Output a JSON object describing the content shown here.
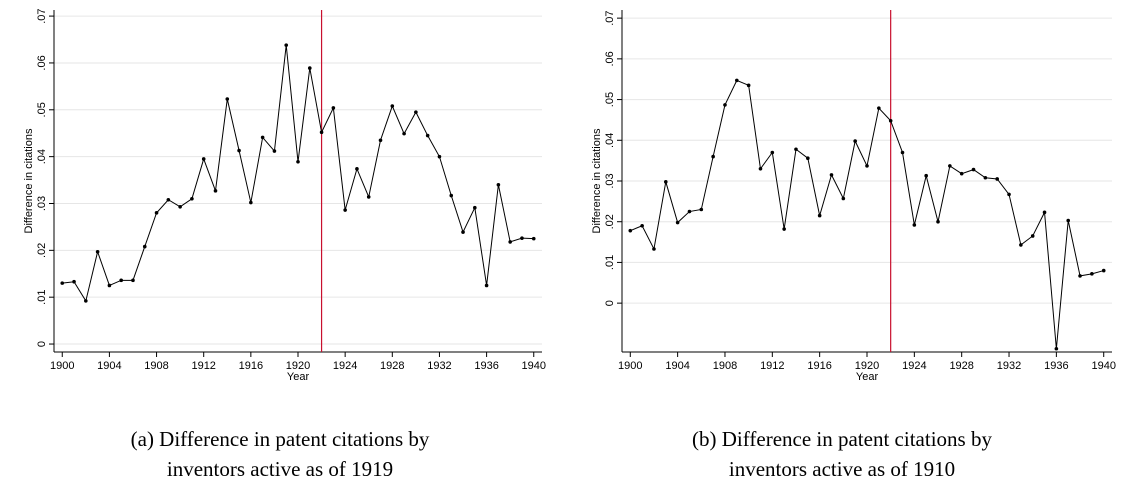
{
  "chart_data": [
    {
      "type": "line",
      "xlabel": "Year",
      "ylabel": "Difference in citations",
      "caption": [
        "(a) Difference in patent citations by",
        "inventors active as of 1919"
      ],
      "x": [
        1900,
        1901,
        1902,
        1903,
        1904,
        1905,
        1906,
        1907,
        1908,
        1909,
        1910,
        1911,
        1912,
        1913,
        1914,
        1915,
        1916,
        1917,
        1918,
        1919,
        1920,
        1921,
        1922,
        1923,
        1924,
        1925,
        1926,
        1927,
        1928,
        1929,
        1930,
        1931,
        1932,
        1933,
        1934,
        1935,
        1936,
        1937,
        1938,
        1939,
        1940
      ],
      "series": [
        {
          "color": "#000000",
          "values": [
            0.013,
            0.0133,
            0.0092,
            0.0197,
            0.0125,
            0.0136,
            0.0136,
            0.0208,
            0.028,
            0.0308,
            0.0293,
            0.031,
            0.0395,
            0.0327,
            0.0523,
            0.0413,
            0.0302,
            0.0441,
            0.0412,
            0.0638,
            0.0389,
            0.0589,
            0.0452,
            0.0504,
            0.0286,
            0.0374,
            0.0314,
            0.0435,
            0.0508,
            0.0449,
            0.0495,
            0.0445,
            0.04,
            0.0317,
            0.0239,
            0.0291,
            0.0125,
            0.034,
            0.0218,
            0.0226,
            0.0225
          ]
        }
      ],
      "vline": 1922,
      "vline_color": "#c8102e",
      "xlim": [
        1899.3,
        1940.7
      ],
      "xticks": [
        1900,
        1904,
        1908,
        1912,
        1916,
        1920,
        1924,
        1928,
        1932,
        1936,
        1940
      ],
      "ylim": [
        -0.0017,
        0.0713
      ],
      "yticks": [
        0,
        {
          "value": 0.01,
          "label": ".01"
        },
        {
          "value": 0.02,
          "label": ".02"
        },
        {
          "value": 0.03,
          "label": ".03"
        },
        {
          "value": 0.04,
          "label": ".04"
        },
        {
          "value": 0.05,
          "label": ".05"
        },
        {
          "value": 0.06,
          "label": ".06"
        },
        {
          "value": 0.07,
          "label": ".07"
        }
      ],
      "grid": true
    },
    {
      "type": "line",
      "xlabel": "Year",
      "ylabel": "Difference in citations",
      "caption": [
        "(b) Difference in patent citations by",
        "inventors active as of 1910"
      ],
      "x": [
        1900,
        1901,
        1902,
        1903,
        1904,
        1905,
        1906,
        1907,
        1908,
        1909,
        1910,
        1911,
        1912,
        1913,
        1914,
        1915,
        1916,
        1917,
        1918,
        1919,
        1920,
        1921,
        1922,
        1923,
        1924,
        1925,
        1926,
        1927,
        1928,
        1929,
        1930,
        1931,
        1932,
        1933,
        1934,
        1935,
        1936,
        1937,
        1938,
        1939,
        1940
      ],
      "series": [
        {
          "color": "#000000",
          "values": [
            0.0178,
            0.019,
            0.0133,
            0.0298,
            0.0198,
            0.0225,
            0.023,
            0.036,
            0.0487,
            0.0547,
            0.0535,
            0.033,
            0.037,
            0.0182,
            0.0378,
            0.0356,
            0.0215,
            0.0315,
            0.0257,
            0.0398,
            0.0337,
            0.0479,
            0.0448,
            0.037,
            0.0192,
            0.0313,
            0.02,
            0.0337,
            0.0318,
            0.0328,
            0.0308,
            0.0305,
            0.0267,
            0.0143,
            0.0165,
            0.0223,
            -0.0112,
            0.0203,
            0.0067,
            0.0072,
            0.008
          ]
        }
      ],
      "vline": 1922,
      "vline_color": "#c8102e",
      "xlim": [
        1899.3,
        1940.7
      ],
      "xticks": [
        1900,
        1904,
        1908,
        1912,
        1916,
        1920,
        1924,
        1928,
        1932,
        1936,
        1940
      ],
      "ylim": [
        -0.012,
        0.072
      ],
      "yticks": [
        0,
        {
          "value": 0.01,
          "label": ".01"
        },
        {
          "value": 0.02,
          "label": ".02"
        },
        {
          "value": 0.03,
          "label": ".03"
        },
        {
          "value": 0.04,
          "label": ".04"
        },
        {
          "value": 0.05,
          "label": ".05"
        },
        {
          "value": 0.06,
          "label": ".06"
        },
        {
          "value": 0.07,
          "label": ".07"
        }
      ],
      "grid": true
    }
  ]
}
